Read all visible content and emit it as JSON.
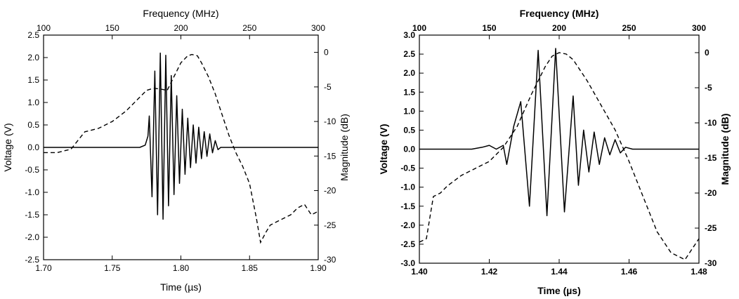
{
  "chart_data": [
    {
      "type": "line",
      "bold_text": false,
      "xlabel": "Time (µs)",
      "x2label": "Frequency (MHz)",
      "ylabel": "Voltage (V)",
      "y2label": "Magnitude (dB)",
      "xlim": [
        1.7,
        1.9
      ],
      "x2lim": [
        100,
        300
      ],
      "ylim": [
        -2.5,
        2.5
      ],
      "y2lim": [
        -30,
        2.5
      ],
      "xticks": [
        "1.70",
        "1.75",
        "1.80",
        "1.85",
        "1.90"
      ],
      "x2ticks": [
        "100",
        "150",
        "200",
        "250",
        "300"
      ],
      "yticks": [
        "-2.5",
        "-2.0",
        "-1.5",
        "-1.0",
        "-0.5",
        "0.0",
        "0.5",
        "1.0",
        "1.5",
        "2.0",
        "2.5"
      ],
      "y2ticks": [
        "0",
        "-5",
        "-10",
        "-15",
        "-20",
        "-25",
        "-30"
      ],
      "series": [
        {
          "style": "solid",
          "axis": "primary",
          "x": [
            1.7,
            1.71,
            1.72,
            1.73,
            1.74,
            1.75,
            1.76,
            1.77,
            1.774,
            1.776,
            1.777,
            1.779,
            1.781,
            1.783,
            1.785,
            1.787,
            1.789,
            1.791,
            1.793,
            1.795,
            1.797,
            1.799,
            1.801,
            1.803,
            1.805,
            1.807,
            1.809,
            1.811,
            1.813,
            1.815,
            1.817,
            1.819,
            1.821,
            1.823,
            1.825,
            1.827,
            1.829,
            1.835,
            1.84,
            1.85,
            1.86,
            1.87,
            1.88,
            1.89,
            1.9
          ],
          "y": [
            0.0,
            0.0,
            0.0,
            0.0,
            0.0,
            0.0,
            0.0,
            0.0,
            0.05,
            0.25,
            0.7,
            -1.1,
            1.7,
            -1.5,
            2.1,
            -1.6,
            2.05,
            -1.3,
            1.6,
            -1.05,
            1.15,
            -0.8,
            0.85,
            -0.6,
            0.65,
            -0.45,
            0.5,
            -0.35,
            0.45,
            -0.25,
            0.35,
            -0.2,
            0.3,
            -0.12,
            0.15,
            -0.05,
            0.0,
            0.0,
            0.0,
            0.0,
            0.0,
            0.0,
            0.0,
            0.0,
            0.0
          ]
        },
        {
          "style": "dashed",
          "axis": "secondary",
          "x": [
            100,
            110,
            120,
            130,
            140,
            150,
            160,
            170,
            175,
            180,
            185,
            190,
            195,
            200,
            205,
            208,
            212,
            215,
            220,
            225,
            230,
            235,
            240,
            245,
            250,
            255,
            258,
            262,
            265,
            270,
            275,
            280,
            285,
            290,
            295,
            300
          ],
          "y": [
            -14.5,
            -14.5,
            -14.0,
            -11.5,
            -11.0,
            -10.0,
            -8.5,
            -6.5,
            -5.5,
            -5.2,
            -5.3,
            -5.5,
            -3.5,
            -1.5,
            -0.5,
            -0.3,
            -0.5,
            -1.5,
            -3.5,
            -6.0,
            -9.0,
            -12.0,
            -14.5,
            -16.5,
            -19.0,
            -24.0,
            -27.5,
            -26.0,
            -25.0,
            -24.5,
            -24.0,
            -23.5,
            -22.5,
            -22.0,
            -23.5,
            -23.0
          ]
        }
      ]
    },
    {
      "type": "line",
      "bold_text": true,
      "xlabel": "Time (µs)",
      "x2label": "Frequency (MHz)",
      "ylabel": "Voltage (V)",
      "y2label": "Magnitude (dB)",
      "xlim": [
        1.4,
        1.48
      ],
      "x2lim": [
        100,
        300
      ],
      "ylim": [
        -3.0,
        3.0
      ],
      "y2lim": [
        -30,
        2.5
      ],
      "xticks": [
        "1.40",
        "1.42",
        "1.44",
        "1.46",
        "1.48"
      ],
      "x2ticks": [
        "100",
        "150",
        "200",
        "250",
        "300"
      ],
      "yticks": [
        "-3.0",
        "-2.5",
        "-2.0",
        "-1.5",
        "-1.0",
        "-0.5",
        "0.0",
        "0.5",
        "1.0",
        "1.5",
        "2.0",
        "2.5",
        "3.0"
      ],
      "y2ticks": [
        "0",
        "-5",
        "-10",
        "-15",
        "-20",
        "-25",
        "-30"
      ],
      "series": [
        {
          "style": "solid",
          "axis": "primary",
          "x": [
            1.4,
            1.405,
            1.41,
            1.415,
            1.418,
            1.42,
            1.422,
            1.424,
            1.425,
            1.427,
            1.429,
            1.4315,
            1.434,
            1.4365,
            1.439,
            1.4415,
            1.444,
            1.4455,
            1.447,
            1.4485,
            1.45,
            1.4515,
            1.453,
            1.4545,
            1.456,
            1.4575,
            1.459,
            1.461,
            1.465,
            1.47,
            1.475,
            1.48
          ],
          "y": [
            0.0,
            0.0,
            0.0,
            0.0,
            0.05,
            0.1,
            0.0,
            0.1,
            -0.4,
            0.6,
            1.25,
            -1.5,
            2.6,
            -1.75,
            2.65,
            -1.65,
            1.4,
            -0.95,
            0.5,
            -0.6,
            0.45,
            -0.4,
            0.3,
            -0.15,
            0.25,
            -0.1,
            0.05,
            0.0,
            0.0,
            0.0,
            0.0,
            0.0
          ]
        },
        {
          "style": "dashed",
          "axis": "secondary",
          "x": [
            100,
            105,
            110,
            115,
            120,
            130,
            140,
            150,
            160,
            170,
            180,
            190,
            195,
            200,
            205,
            210,
            220,
            230,
            240,
            250,
            260,
            270,
            280,
            290,
            295,
            300
          ],
          "y": [
            -27.0,
            -26.5,
            -20.5,
            -20.0,
            -19.0,
            -17.5,
            -16.5,
            -15.5,
            -13.5,
            -10.5,
            -6.0,
            -2.0,
            -0.5,
            0.0,
            -0.2,
            -1.0,
            -4.0,
            -7.5,
            -11.0,
            -15.5,
            -20.5,
            -25.5,
            -28.5,
            -29.5,
            -28.0,
            -26.5
          ]
        }
      ]
    }
  ]
}
